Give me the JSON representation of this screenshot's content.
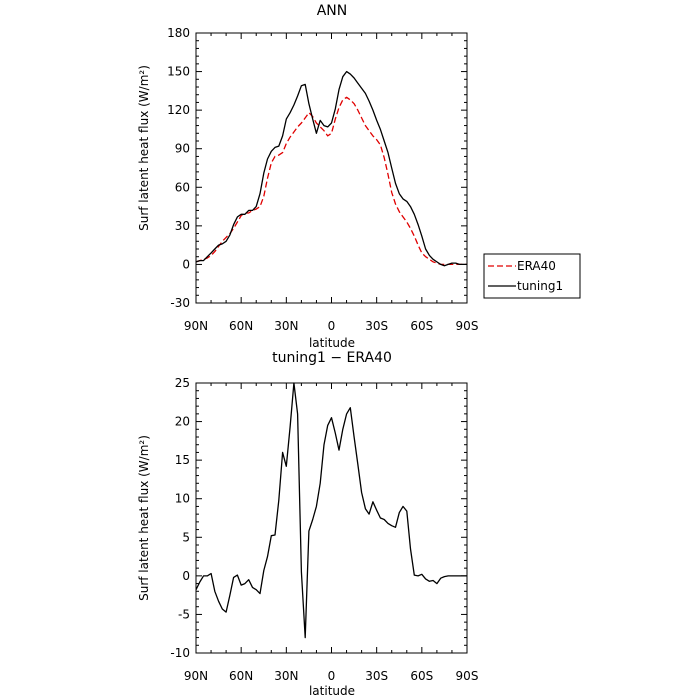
{
  "chart_data": [
    {
      "type": "line",
      "title": "ANN",
      "xlabel": "latitude",
      "ylabel": "Surf latent heat flux (W/m²)",
      "xlim": [
        90,
        -90
      ],
      "ylim": [
        -30,
        180
      ],
      "yticks": [
        -30,
        0,
        30,
        60,
        90,
        120,
        150,
        180
      ],
      "xticks": [
        90,
        60,
        30,
        0,
        -30,
        -60,
        -90
      ],
      "xtick_labels": [
        "90N",
        "60N",
        "30N",
        "0",
        "30S",
        "60S",
        "90S"
      ],
      "legend": {
        "placement": "right",
        "entries": [
          "ERA40",
          "tuning1"
        ]
      },
      "series": [
        {
          "name": "ERA40",
          "color": "#e00000",
          "dash": true,
          "x": [
            90,
            87.5,
            85,
            82.5,
            80,
            77.5,
            75,
            72.5,
            70,
            67.5,
            65,
            62.5,
            60,
            57.5,
            55,
            52.5,
            50,
            47.5,
            45,
            42.5,
            40,
            37.5,
            35,
            32.5,
            30,
            27.5,
            25,
            22.5,
            20,
            17.5,
            15,
            12.5,
            10,
            7.5,
            5,
            2.5,
            0,
            -2.5,
            -5,
            -7.5,
            -10,
            -12.5,
            -15,
            -17.5,
            -20,
            -22.5,
            -25,
            -27.5,
            -30,
            -32.5,
            -35,
            -37.5,
            -40,
            -42.5,
            -45,
            -47.5,
            -50,
            -52.5,
            -55,
            -57.5,
            -60,
            -62.5,
            -65,
            -67.5,
            -70,
            -72.5,
            -75,
            -77.5,
            -80,
            -82.5,
            -85,
            -87.5,
            -90
          ],
          "y": [
            2,
            3,
            4,
            5,
            7,
            10,
            14,
            18,
            21,
            24,
            28,
            33,
            38,
            40,
            40,
            42,
            43,
            45,
            53,
            67,
            79,
            84,
            85,
            87,
            94,
            99,
            103,
            107,
            110,
            114,
            118,
            115,
            110,
            107,
            104,
            100,
            102,
            113,
            122,
            128,
            130,
            128,
            125,
            120,
            114,
            108,
            104,
            100,
            97,
            93,
            83,
            70,
            56,
            47,
            41,
            37,
            33,
            28,
            22,
            15,
            9,
            6,
            4,
            2,
            1,
            0,
            0,
            0,
            0,
            0,
            0,
            0,
            0
          ]
        },
        {
          "name": "tuning1",
          "color": "#000000",
          "dash": false,
          "x": [
            90,
            87.5,
            85,
            82.5,
            80,
            77.5,
            75,
            72.5,
            70,
            67.5,
            65,
            62.5,
            60,
            57.5,
            55,
            52.5,
            50,
            47.5,
            45,
            42.5,
            40,
            37.5,
            35,
            32.5,
            30,
            27.5,
            25,
            22.5,
            20,
            17.5,
            15,
            12.5,
            10,
            7.5,
            5,
            2.5,
            0,
            -2.5,
            -5,
            -7.5,
            -10,
            -12.5,
            -15,
            -17.5,
            -20,
            -22.5,
            -25,
            -27.5,
            -30,
            -32.5,
            -35,
            -37.5,
            -40,
            -42.5,
            -45,
            -47.5,
            -50,
            -52.5,
            -55,
            -57.5,
            -60,
            -62.5,
            -65,
            -67.5,
            -70,
            -72.5,
            -75,
            -77.5,
            -80,
            -82.5,
            -85,
            -87.5,
            -90
          ],
          "y": [
            2,
            3,
            3,
            6,
            9,
            12,
            15,
            16,
            18,
            23,
            31,
            37,
            39,
            39,
            42,
            42,
            45,
            55,
            71,
            82,
            88,
            91,
            92,
            100,
            113,
            118,
            124,
            131,
            139,
            140,
            125,
            113,
            102,
            112,
            108,
            107,
            110,
            121,
            136,
            146,
            150,
            148,
            145,
            141,
            137,
            133,
            127,
            120,
            112,
            105,
            96,
            87,
            75,
            63,
            55,
            51,
            49,
            45,
            39,
            31,
            22,
            12,
            7,
            4,
            2,
            0,
            -1,
            0,
            1,
            1,
            0,
            0,
            0
          ]
        }
      ]
    },
    {
      "type": "line",
      "title": "tuning1 − ERA40",
      "xlabel": "latitude",
      "ylabel": "Surf latent heat flux (W/m²)",
      "xlim": [
        90,
        -90
      ],
      "ylim": [
        -10,
        25
      ],
      "yticks": [
        -10,
        -5,
        0,
        5,
        10,
        15,
        20,
        25
      ],
      "xticks": [
        90,
        60,
        30,
        0,
        -30,
        -60,
        -90
      ],
      "xtick_labels": [
        "90N",
        "60N",
        "30N",
        "0",
        "30S",
        "60S",
        "90S"
      ],
      "series": [
        {
          "color": "#000000",
          "x": [
            90,
            87.5,
            85,
            82.5,
            80,
            77.5,
            75,
            72.5,
            70,
            67.5,
            65,
            62.5,
            60,
            57.5,
            55,
            52.5,
            50,
            47.5,
            45,
            42.5,
            40,
            37.5,
            35,
            32.5,
            30,
            27.5,
            25,
            22.5,
            20,
            17.5,
            15,
            12.5,
            10,
            7.5,
            5,
            2.5,
            0,
            -2.5,
            -5,
            -7.5,
            -10,
            -12.5,
            -15,
            -17.5,
            -20,
            -22.5,
            -25,
            -27.5,
            -30,
            -32.5,
            -35,
            -37.5,
            -40,
            -42.5,
            -45,
            -47.5,
            -50,
            -52.5,
            -55,
            -57.5,
            -60,
            -62.5,
            -65,
            -67.5,
            -70,
            -72.5,
            -75,
            -77.5,
            -80,
            -82.5,
            -85,
            -87.5,
            -90
          ],
          "y": [
            -1.8,
            -0.8,
            0,
            0,
            0.3,
            -2,
            -3.3,
            -4.3,
            -4.7,
            -2.5,
            -0.2,
            0.1,
            -1.2,
            -1,
            -0.5,
            -1.5,
            -1.8,
            -2.3,
            0.7,
            2.5,
            5.2,
            5.3,
            9.8,
            16,
            14.2,
            19.3,
            25,
            21,
            0.5,
            -8,
            5.8,
            7.3,
            9,
            12,
            17,
            19.5,
            20.5,
            18.5,
            16.3,
            19,
            21,
            21.8,
            18,
            14.5,
            10.8,
            8.7,
            8,
            9.6,
            8.5,
            7.5,
            7.3,
            6.8,
            6.5,
            6.3,
            8.2,
            9,
            8.4,
            3.5,
            0.1,
            0,
            0.2,
            -0.4,
            -0.7,
            -0.6,
            -1,
            -0.3,
            -0.1,
            0,
            0,
            0,
            0,
            0,
            0
          ]
        }
      ]
    }
  ]
}
